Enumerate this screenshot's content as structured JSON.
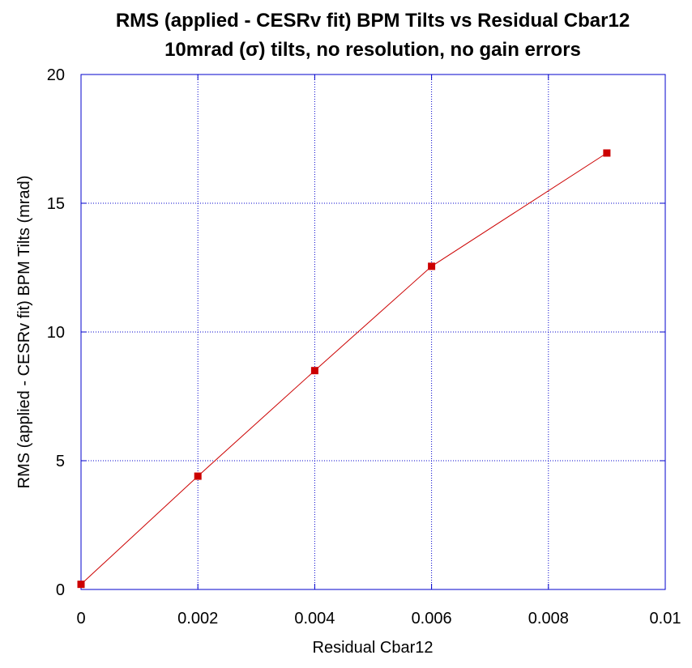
{
  "chart_data": {
    "type": "line",
    "title": "RMS (applied - CESRv fit) BPM Tilts vs Residual Cbar12",
    "subtitle": "10mrad (σ) tilts, no resolution, no gain errors",
    "xlabel": "Residual Cbar12",
    "ylabel": "RMS (applied - CESRv fit) BPM Tilts (mrad)",
    "xlim": [
      0,
      0.01
    ],
    "ylim": [
      0,
      20
    ],
    "x_ticks": [
      0,
      0.002,
      0.004,
      0.006,
      0.008,
      0.01
    ],
    "x_tick_labels": [
      "0",
      "0.002",
      "0.004",
      "0.006",
      "0.008",
      "0.01"
    ],
    "y_ticks": [
      0,
      5,
      10,
      15,
      20
    ],
    "y_tick_labels": [
      "0",
      "5",
      "10",
      "15",
      "20"
    ],
    "grid": true,
    "legend": "none",
    "series": [
      {
        "x": [
          0,
          0.002,
          0.004,
          0.006,
          0.009
        ],
        "y": [
          0.2,
          4.4,
          8.5,
          12.55,
          16.95
        ],
        "color": "#cc0000",
        "marker": "square"
      }
    ],
    "colors": {
      "frame": "#0000cc",
      "grid": "#0000cc",
      "series": "#cc0000",
      "text": "#000000"
    }
  }
}
